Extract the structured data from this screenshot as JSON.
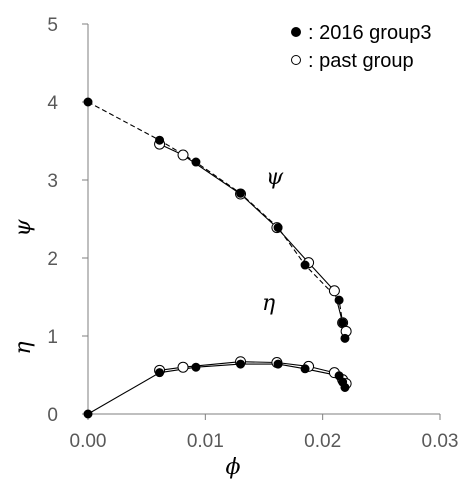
{
  "chart_data": {
    "type": "scatter",
    "xlabel": "ϕ",
    "ylabel_upper": "ψ",
    "ylabel_lower": "η",
    "xlim": [
      0.0,
      0.03
    ],
    "ylim": [
      0,
      5
    ],
    "x_ticks": [
      "0.00",
      "0.01",
      "0.02",
      "0.03"
    ],
    "y_ticks": [
      "0",
      "1",
      "2",
      "3",
      "4",
      "5"
    ],
    "grid": false,
    "legend_position": "top-right",
    "annotations": [
      "ψ",
      "η"
    ],
    "series": [
      {
        "name": ": 2016 group3",
        "marker": "filled-circle",
        "color": "#000000",
        "psi": {
          "line_style": "dashed",
          "x": [
            0.0,
            0.0061,
            0.0092,
            0.013,
            0.0162,
            0.0185,
            0.0214,
            0.0217,
            0.0219
          ],
          "y": [
            4.0,
            3.51,
            3.23,
            2.83,
            2.39,
            1.91,
            1.46,
            1.17,
            0.97
          ]
        },
        "eta": {
          "line_style": "solid",
          "x": [
            0.0,
            0.0061,
            0.0092,
            0.013,
            0.0162,
            0.0185,
            0.0214,
            0.0217,
            0.0219
          ],
          "y": [
            0.0,
            0.53,
            0.6,
            0.64,
            0.64,
            0.58,
            0.49,
            0.41,
            0.34
          ]
        }
      },
      {
        "name": ": past group",
        "marker": "open-circle",
        "color": "#000000",
        "psi": {
          "line_style": "solid",
          "x": [
            0.0061,
            0.0081,
            0.013,
            0.0161,
            0.0188,
            0.021,
            0.0217,
            0.022
          ],
          "y": [
            3.46,
            3.32,
            2.82,
            2.39,
            1.94,
            1.58,
            1.17,
            1.06
          ]
        },
        "eta": {
          "line_style": "solid",
          "x": [
            0.0061,
            0.0081,
            0.013,
            0.0161,
            0.0188,
            0.021,
            0.0217,
            0.022
          ],
          "y": [
            0.56,
            0.6,
            0.67,
            0.66,
            0.61,
            0.53,
            0.44,
            0.39
          ]
        }
      }
    ]
  }
}
